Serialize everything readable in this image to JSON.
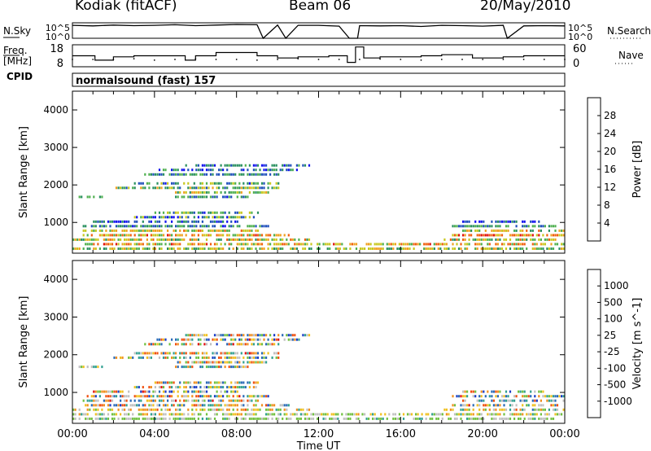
{
  "header": {
    "station": "Kodiak  (fitACF)",
    "beam": "Beam 06",
    "date": "20/May/2010"
  },
  "left_labels": {
    "nsky": "N.Sky",
    "freq": "Freq.",
    "freq_unit": "[MHz]",
    "cpid": "CPID"
  },
  "right_labels": {
    "nsearch": "N.Search",
    "nave": "Nave"
  },
  "mode_text": "normalsound (fast)  157",
  "chart_data": [
    {
      "type": "line",
      "panel": "noise",
      "ylabel_left": "N.Sky",
      "ylabel_right": "N.Search",
      "yticks_left": [
        "10^5",
        "10^0"
      ],
      "yticks_right": [
        "10^5",
        "10^0"
      ],
      "x": [
        0,
        1,
        2,
        3,
        4,
        5,
        6,
        7,
        8,
        9,
        9.3,
        10,
        10.4,
        11,
        12,
        13,
        13.5,
        13.9,
        14,
        15,
        16,
        17,
        18,
        19,
        20,
        21,
        21.2,
        22,
        23,
        24
      ],
      "nsky": [
        4.6,
        4.4,
        4.7,
        4.5,
        4.6,
        4.8,
        4.5,
        4.7,
        4.9,
        4.8,
        0.0,
        4.7,
        0.0,
        4.6,
        4.6,
        4.3,
        0.0,
        0.0,
        4.5,
        4.4,
        4.5,
        4.2,
        4.6,
        4.5,
        4.3,
        4.6,
        0.0,
        4.4,
        4.5,
        4.4
      ]
    },
    {
      "type": "line",
      "panel": "frequency",
      "ylabel_left": "Freq. [MHz]",
      "ylabel_right": "Nave",
      "yticks_left": [
        "18",
        "8"
      ],
      "yticks_right": [
        "60",
        "0"
      ],
      "ylim_left": [
        8,
        18
      ],
      "ylim_right": [
        0,
        60
      ],
      "freq_steps": [
        [
          0,
          13
        ],
        [
          1.1,
          11
        ],
        [
          2,
          12.5
        ],
        [
          3,
          13
        ],
        [
          5.5,
          11
        ],
        [
          6,
          13
        ],
        [
          7,
          14.5
        ],
        [
          8,
          14.5
        ],
        [
          9,
          13
        ],
        [
          10,
          12
        ],
        [
          11,
          12.5
        ],
        [
          12.5,
          13
        ],
        [
          13.4,
          10
        ],
        [
          13.8,
          17
        ],
        [
          14.2,
          12
        ],
        [
          15,
          12.5
        ],
        [
          17,
          13
        ],
        [
          18,
          13.5
        ],
        [
          19.5,
          12
        ],
        [
          21,
          12.5
        ],
        [
          22,
          13
        ],
        [
          24,
          13
        ]
      ],
      "nave": [
        20,
        20,
        20,
        22,
        18,
        20,
        22,
        20,
        20,
        18,
        20,
        22,
        20,
        20,
        20,
        21,
        20,
        18,
        20,
        20,
        20,
        20,
        20,
        20,
        20
      ]
    },
    {
      "type": "heatmap",
      "panel": "power",
      "ylabel": "Slant Range [km]",
      "yticks": [
        "1000",
        "2000",
        "3000",
        "4000"
      ],
      "ylim": [
        180,
        4500
      ],
      "xlim": [
        0,
        24
      ],
      "colorbar_label": "Power [dB]",
      "colorbar_ticks": [
        "4",
        "8",
        "12",
        "16",
        "20",
        "24",
        "28"
      ],
      "colorbar_colors": [
        "#1010ee",
        "#2050bb",
        "#2a9060",
        "#50b050",
        "#c8c820",
        "#f0a020",
        "#f06010",
        "#e01010"
      ],
      "bands": [
        {
          "range_km": 300,
          "t0": 0.0,
          "t1": 24.0,
          "level": [
            0.3,
            0.7
          ]
        },
        {
          "range_km": 420,
          "t0": 0.0,
          "t1": 24.0,
          "level": [
            0.4,
            0.9
          ]
        },
        {
          "range_km": 540,
          "t0": 0.0,
          "t1": 11.5,
          "level": [
            0.3,
            0.8
          ]
        },
        {
          "range_km": 540,
          "t0": 18.0,
          "t1": 24.0,
          "level": [
            0.3,
            0.8
          ]
        },
        {
          "range_km": 660,
          "t0": 0.5,
          "t1": 10.5,
          "level": [
            0.4,
            0.9
          ]
        },
        {
          "range_km": 660,
          "t0": 18.5,
          "t1": 24.0,
          "level": [
            0.5,
            0.95
          ]
        },
        {
          "range_km": 780,
          "t0": 0.5,
          "t1": 9.0,
          "level": [
            0.4,
            0.8
          ]
        },
        {
          "range_km": 780,
          "t0": 19.0,
          "t1": 24.0,
          "level": [
            0.3,
            0.8
          ]
        },
        {
          "range_km": 900,
          "t0": 0.5,
          "t1": 9.5,
          "level": [
            0.1,
            0.5
          ]
        },
        {
          "range_km": 900,
          "t0": 18.5,
          "t1": 24.0,
          "level": [
            0.1,
            0.5
          ]
        },
        {
          "range_km": 1020,
          "t0": 1.0,
          "t1": 8.0,
          "level": [
            0.0,
            0.4
          ]
        },
        {
          "range_km": 1020,
          "t0": 19.0,
          "t1": 23.0,
          "level": [
            0.0,
            0.4
          ]
        },
        {
          "range_km": 1140,
          "t0": 3.0,
          "t1": 9.0,
          "level": [
            0.0,
            0.6
          ]
        },
        {
          "range_km": 1260,
          "t0": 4.0,
          "t1": 9.0,
          "level": [
            0.1,
            0.6
          ]
        },
        {
          "range_km": 1680,
          "t0": 0.3,
          "t1": 1.5,
          "level": [
            0.3,
            0.6
          ]
        },
        {
          "range_km": 1680,
          "t0": 5.0,
          "t1": 8.5,
          "level": [
            0.1,
            0.5
          ]
        },
        {
          "range_km": 1800,
          "t0": 5.0,
          "t1": 9.5,
          "level": [
            0.3,
            0.7
          ]
        },
        {
          "range_km": 1920,
          "t0": 2.0,
          "t1": 10.0,
          "level": [
            0.2,
            0.7
          ]
        },
        {
          "range_km": 2040,
          "t0": 3.0,
          "t1": 10.0,
          "level": [
            0.1,
            0.6
          ]
        },
        {
          "range_km": 2280,
          "t0": 3.5,
          "t1": 10.0,
          "level": [
            0.1,
            0.5
          ]
        },
        {
          "range_km": 2400,
          "t0": 4.0,
          "t1": 11.0,
          "level": [
            0.0,
            0.5
          ]
        },
        {
          "range_km": 2520,
          "t0": 5.5,
          "t1": 11.5,
          "level": [
            0.0,
            0.4
          ]
        }
      ]
    },
    {
      "type": "heatmap",
      "panel": "velocity",
      "ylabel": "Slant Range [km]",
      "yticks": [
        "1000",
        "2000",
        "3000",
        "4000"
      ],
      "ylim": [
        180,
        4500
      ],
      "xlim": [
        0,
        24
      ],
      "colorbar_label": "Velocity [m s^-1]",
      "colorbar_ticks": [
        "1000",
        "500",
        "100",
        "25",
        "-25",
        "-100",
        "-500",
        "-1000"
      ],
      "colorbar_colors": [
        "#1a3cc8",
        "#2a6ab8",
        "#30a090",
        "#70c040",
        "#c0c0c0",
        "#f0c020",
        "#f09020",
        "#f05010",
        "#e01010"
      ],
      "bands": [
        {
          "range_km": 300,
          "t0": 0.0,
          "t1": 24.0,
          "level": [
            0.3,
            0.55
          ]
        },
        {
          "range_km": 420,
          "t0": 0.0,
          "t1": 24.0,
          "level": [
            0.3,
            0.7
          ]
        },
        {
          "range_km": 540,
          "t0": 0.0,
          "t1": 11.5,
          "level": [
            0.3,
            0.8
          ]
        },
        {
          "range_km": 540,
          "t0": 18.0,
          "t1": 24.0,
          "level": [
            0.2,
            0.8
          ]
        },
        {
          "range_km": 660,
          "t0": 0.5,
          "t1": 10.5,
          "level": [
            0.1,
            0.9
          ]
        },
        {
          "range_km": 660,
          "t0": 18.5,
          "t1": 24.0,
          "level": [
            0.1,
            0.9
          ]
        },
        {
          "range_km": 780,
          "t0": 0.5,
          "t1": 9.0,
          "level": [
            0.1,
            0.9
          ]
        },
        {
          "range_km": 780,
          "t0": 19.0,
          "t1": 24.0,
          "level": [
            0.1,
            0.9
          ]
        },
        {
          "range_km": 900,
          "t0": 0.5,
          "t1": 9.5,
          "level": [
            0.0,
            0.9
          ]
        },
        {
          "range_km": 900,
          "t0": 18.5,
          "t1": 24.0,
          "level": [
            0.0,
            0.9
          ]
        },
        {
          "range_km": 1020,
          "t0": 1.0,
          "t1": 8.0,
          "level": [
            0.0,
            0.9
          ]
        },
        {
          "range_km": 1020,
          "t0": 19.0,
          "t1": 23.0,
          "level": [
            0.0,
            0.9
          ]
        },
        {
          "range_km": 1140,
          "t0": 3.0,
          "t1": 9.0,
          "level": [
            0.0,
            0.9
          ]
        },
        {
          "range_km": 1260,
          "t0": 4.0,
          "t1": 9.0,
          "level": [
            0.1,
            0.9
          ]
        },
        {
          "range_km": 1680,
          "t0": 0.3,
          "t1": 1.5,
          "level": [
            0.2,
            0.8
          ]
        },
        {
          "range_km": 1680,
          "t0": 5.0,
          "t1": 8.5,
          "level": [
            0.1,
            0.9
          ]
        },
        {
          "range_km": 1800,
          "t0": 5.0,
          "t1": 9.5,
          "level": [
            0.1,
            0.9
          ]
        },
        {
          "range_km": 1920,
          "t0": 2.0,
          "t1": 10.0,
          "level": [
            0.1,
            0.9
          ]
        },
        {
          "range_km": 2040,
          "t0": 3.0,
          "t1": 10.0,
          "level": [
            0.1,
            0.9
          ]
        },
        {
          "range_km": 2280,
          "t0": 3.5,
          "t1": 10.0,
          "level": [
            0.1,
            0.9
          ]
        },
        {
          "range_km": 2400,
          "t0": 4.0,
          "t1": 11.0,
          "level": [
            0.0,
            0.9
          ]
        },
        {
          "range_km": 2520,
          "t0": 5.5,
          "t1": 11.5,
          "level": [
            0.0,
            0.9
          ]
        }
      ]
    }
  ],
  "time_axis": {
    "label": "Time UT",
    "ticks": [
      "00:00",
      "04:00",
      "08:00",
      "12:00",
      "16:00",
      "20:00",
      "00:00"
    ]
  }
}
